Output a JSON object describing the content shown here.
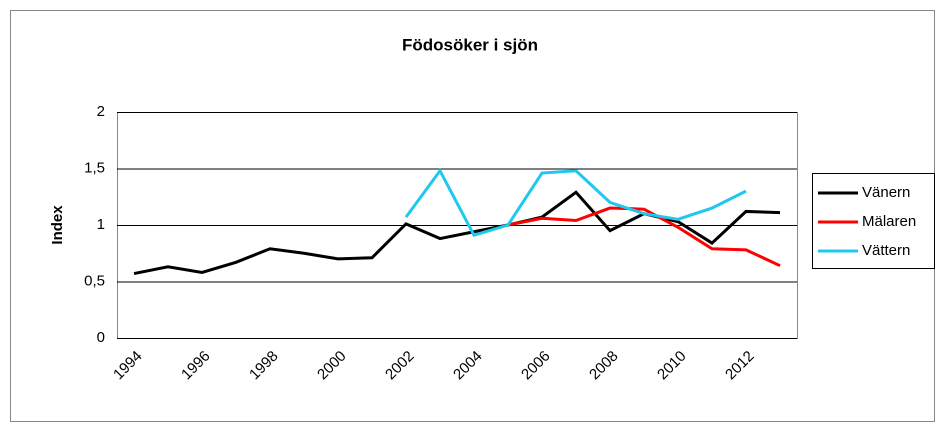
{
  "chart_data": {
    "type": "line",
    "title": "Födosöker i sjön",
    "y_label": "Index",
    "categories": [
      "1994",
      null,
      "1996",
      null,
      "1998",
      null,
      "2000",
      null,
      "2002",
      null,
      "2004",
      null,
      "2006",
      null,
      "2008",
      null,
      "2010",
      null,
      "2012",
      null
    ],
    "series": [
      {
        "name": "Vänern",
        "color": "#000000",
        "values": [
          0.57,
          0.63,
          0.58,
          0.67,
          0.79,
          0.75,
          0.7,
          0.71,
          1.01,
          0.88,
          0.94,
          1.0,
          1.07,
          1.29,
          0.95,
          1.1,
          1.03,
          0.84,
          1.12,
          1.11
        ]
      },
      {
        "name": "Mälaren",
        "color": "#ff0000",
        "values": [
          null,
          null,
          null,
          null,
          null,
          null,
          null,
          null,
          null,
          null,
          null,
          1.0,
          1.06,
          1.04,
          1.15,
          1.14,
          0.98,
          0.79,
          0.78,
          0.64
        ]
      },
      {
        "name": "Vättern",
        "color": "#1ec8f0",
        "values": [
          null,
          null,
          null,
          null,
          null,
          null,
          null,
          null,
          1.07,
          1.48,
          0.91,
          1.0,
          1.46,
          1.48,
          1.2,
          1.1,
          1.05,
          1.15,
          1.3,
          null
        ]
      }
    ],
    "ylim": [
      0,
      2
    ],
    "yticks": [
      0,
      {
        "value": 0.5,
        "label": "0,5"
      },
      1,
      {
        "value": 1.5,
        "label": "1,5"
      },
      2
    ],
    "grid": true,
    "legend": "right"
  }
}
